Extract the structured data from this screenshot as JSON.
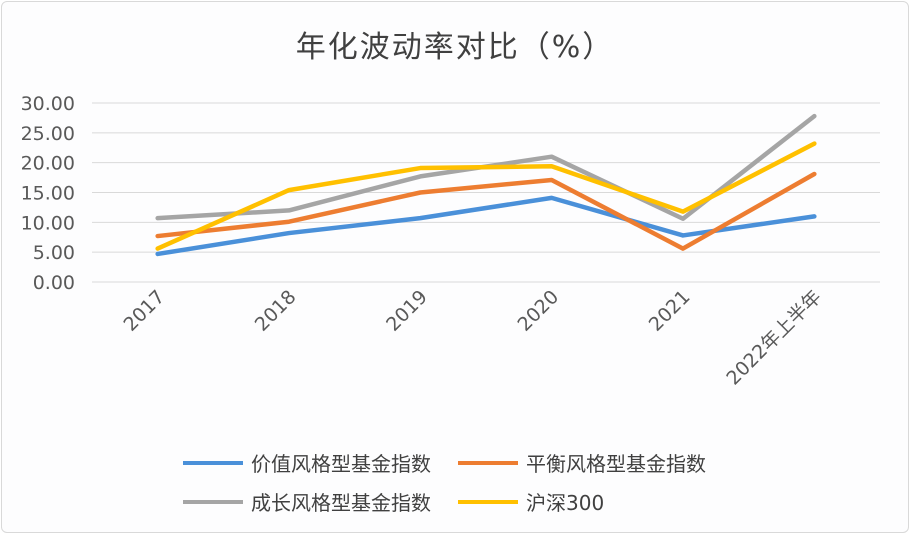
{
  "chart_data": {
    "type": "line",
    "title": "年化波动率对比（%）",
    "categories": [
      "2017",
      "2018",
      "2019",
      "2020",
      "2021",
      "2022年上半年"
    ],
    "ylim": [
      0,
      30
    ],
    "yticks": [
      "0.00",
      "5.00",
      "10.00",
      "15.00",
      "20.00",
      "25.00",
      "30.00"
    ],
    "grid": true,
    "legend_position": "bottom",
    "series": [
      {
        "name": "价值风格型基金指数",
        "color": "#4a90d9",
        "values": [
          4.7,
          8.2,
          10.7,
          14.1,
          7.8,
          11.0
        ]
      },
      {
        "name": "平衡风格型基金指数",
        "color": "#ed7d31",
        "values": [
          7.7,
          10.1,
          15.0,
          17.1,
          5.6,
          18.1
        ]
      },
      {
        "name": "成长风格型基金指数",
        "color": "#a5a5a5",
        "values": [
          10.7,
          12.0,
          17.7,
          21.0,
          10.6,
          27.8
        ]
      },
      {
        "name": "沪深300",
        "color": "#ffc000",
        "values": [
          5.6,
          15.4,
          19.1,
          19.4,
          11.8,
          23.2
        ]
      }
    ]
  }
}
